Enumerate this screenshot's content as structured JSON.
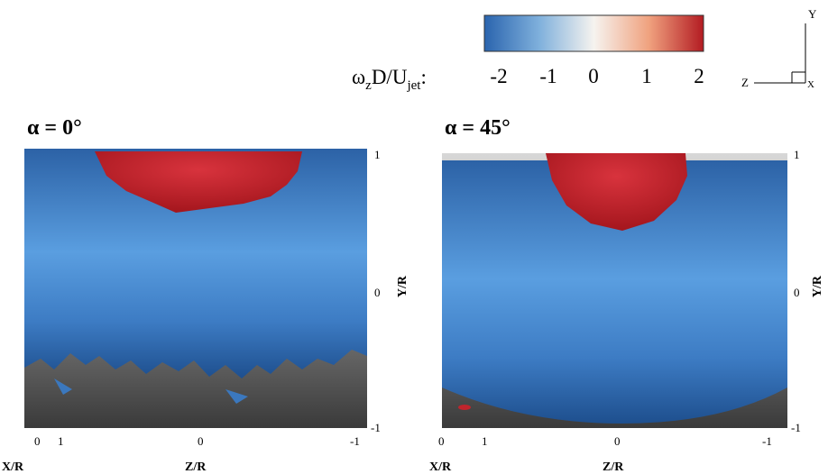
{
  "colorbar": {
    "label": {
      "symbol": "ω",
      "symbol_sub": "z",
      "mid": "D/U",
      "mid_sub": "jet",
      "tail": ":"
    },
    "ticks": [
      "-2",
      "-1",
      "0",
      "1",
      "2"
    ]
  },
  "triad": {
    "y": "Y",
    "z": "Z",
    "x": "X"
  },
  "panels": [
    {
      "title": "α = 0°",
      "right_ticks": [
        "1",
        "0",
        "-1"
      ],
      "right_label": "Y/R",
      "bottom_ticks": [
        "0",
        "1",
        "0",
        "-1"
      ],
      "x_label": "X/R",
      "z_label": "Z/R"
    },
    {
      "title": "α = 45°",
      "right_ticks": [
        "1",
        "0",
        "-1"
      ],
      "right_label": "Y/R",
      "bottom_ticks": [
        "0",
        "1",
        "0",
        "-1"
      ],
      "x_label": "X/R",
      "z_label": "Z/R"
    }
  ]
}
